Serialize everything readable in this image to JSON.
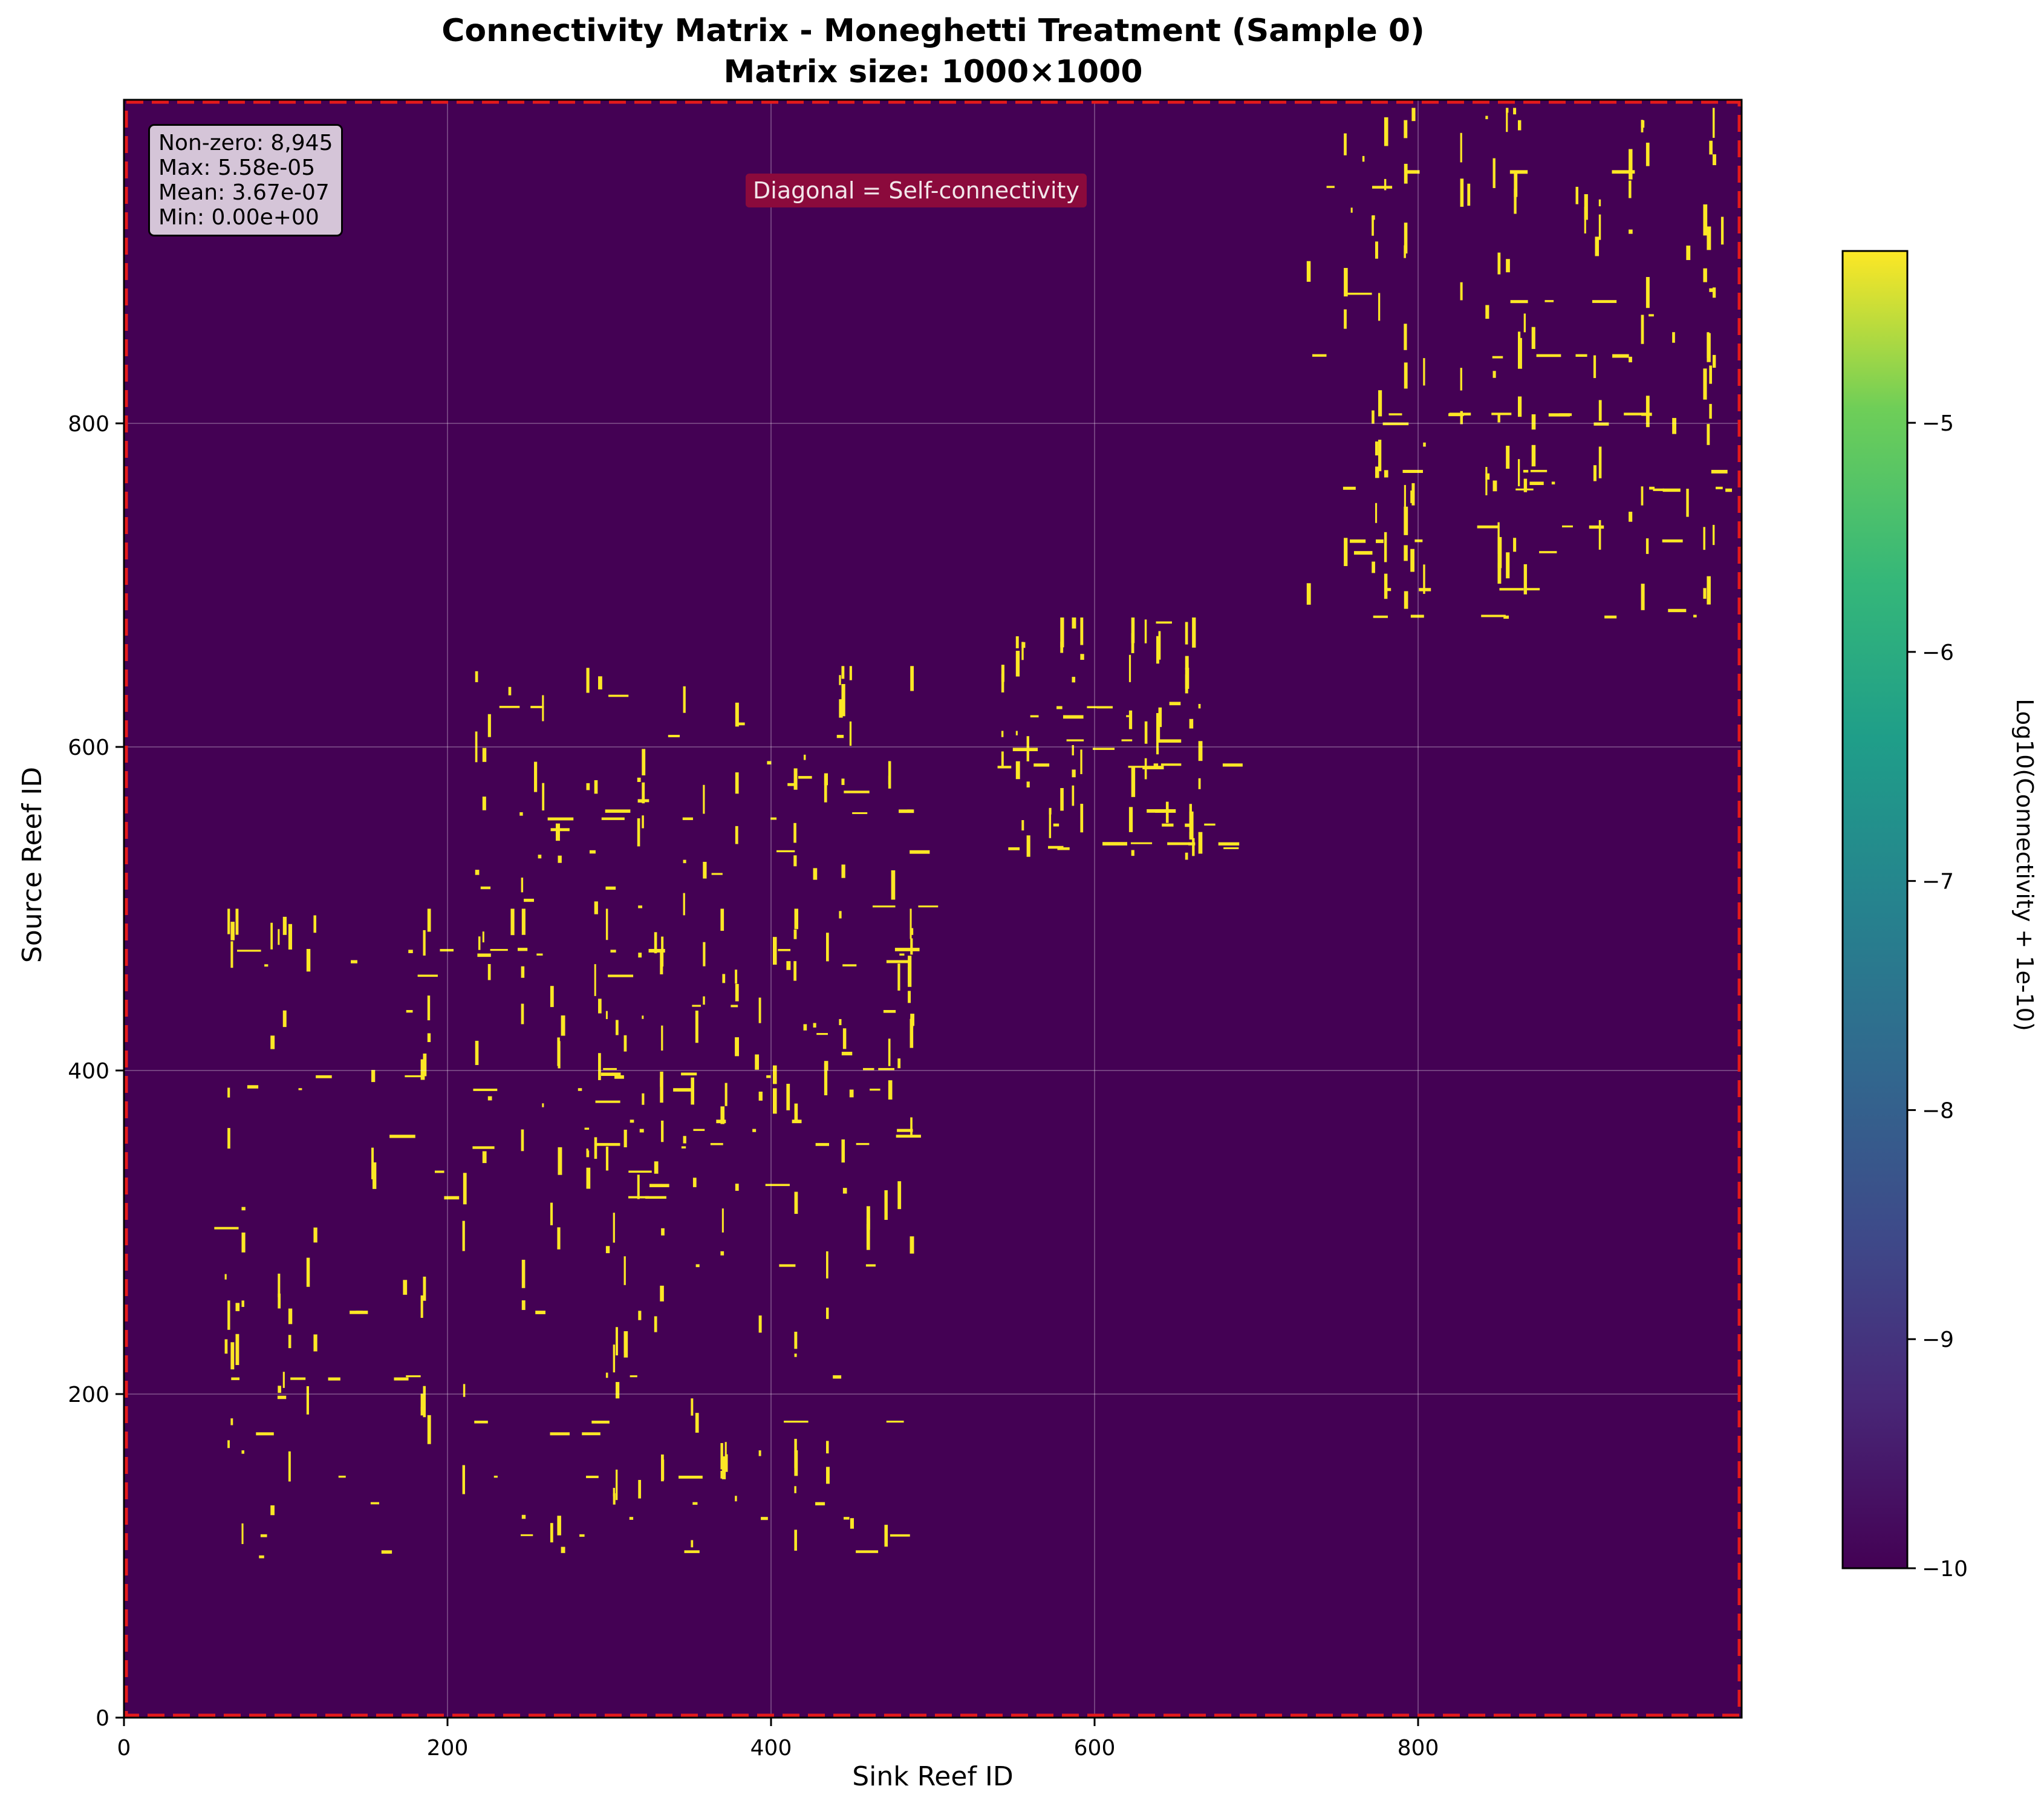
{
  "title_line1": "Connectivity Matrix - Moneghetti Treatment (Sample 0)",
  "title_line2": "Matrix size: 1000×1000",
  "stats": {
    "nonzero": "Non-zero: 8,945",
    "max": "Max: 5.58e-05",
    "mean": "Mean: 3.67e-07",
    "min": "Min: 0.00e+00"
  },
  "diagonal_note": "Diagonal = Self-connectivity",
  "colors": {
    "background_cell": "#440154",
    "high_cell": "#fde725",
    "diagonal_line": "#e41a1c",
    "note_box": "#8b0a3c"
  },
  "chart_data": {
    "type": "heatmap",
    "xlabel": "Sink Reef ID",
    "ylabel": "Source Reef ID",
    "colorbar_label": "Log10(Connectivity + 1e-10)",
    "colormap": "viridis",
    "x_range": [
      0,
      1000
    ],
    "y_range": [
      0,
      1000
    ],
    "x_ticks": [
      0,
      200,
      400,
      600,
      800
    ],
    "y_ticks": [
      0,
      200,
      400,
      600,
      800
    ],
    "colorbar_range": [
      -10,
      -4.25
    ],
    "colorbar_ticks": [
      -10,
      -9,
      -8,
      -7,
      -6,
      -5
    ],
    "grid": true,
    "nonzero_blocks": [
      {
        "name": "block-1",
        "sink_range": [
          55,
          490
        ],
        "source_range": [
          100,
          500
        ]
      },
      {
        "name": "block-2",
        "sink_range": [
          215,
          495
        ],
        "source_range": [
          320,
          650
        ]
      },
      {
        "name": "block-3",
        "sink_range": [
          540,
          680
        ],
        "source_range": [
          530,
          680
        ]
      },
      {
        "name": "block-4",
        "sink_range": [
          730,
          990
        ],
        "source_range": [
          680,
          995
        ]
      }
    ]
  }
}
